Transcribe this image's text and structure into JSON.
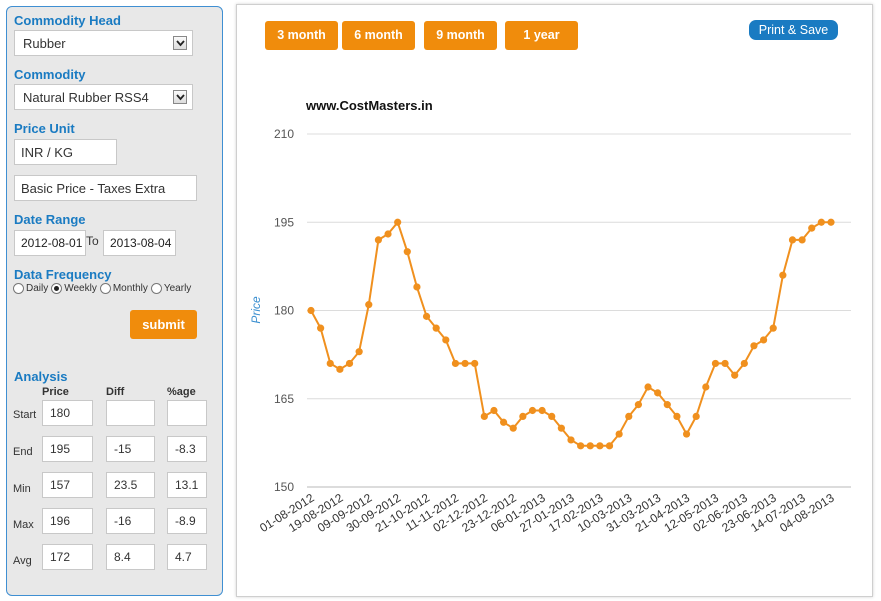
{
  "filters": {
    "commodity_head_label": "Commodity Head",
    "commodity_head_value": "Rubber",
    "commodity_label": "Commodity",
    "commodity_value": "Natural Rubber RSS4",
    "price_unit_label": "Price Unit",
    "price_unit_value": "INR / KG",
    "price_basis_value": "Basic Price - Taxes Extra",
    "date_range_label": "Date Range",
    "date_from": "2012-08-01",
    "to_label": "To",
    "date_to": "2013-08-04",
    "data_frequency_label": "Data Frequency",
    "frequency_options": [
      "Daily",
      "Weekly",
      "Monthly",
      "Yearly"
    ],
    "frequency_selected": "Weekly",
    "submit_label": "submit"
  },
  "analysis": {
    "title": "Analysis",
    "columns": [
      "Price",
      "Diff",
      "%age"
    ],
    "rows": [
      {
        "label": "Start",
        "price": "180",
        "diff": "",
        "pct": ""
      },
      {
        "label": "End",
        "price": "195",
        "diff": "-15",
        "pct": "-8.3"
      },
      {
        "label": "Min",
        "price": "157",
        "diff": "23.5",
        "pct": "13.1"
      },
      {
        "label": "Max",
        "price": "196",
        "diff": "-16",
        "pct": "-8.9"
      },
      {
        "label": "Avg",
        "price": "172",
        "diff": "8.4",
        "pct": "4.7"
      }
    ]
  },
  "toolbar": {
    "range_buttons": [
      "3 month",
      "6 month",
      "9 month",
      "1 year"
    ],
    "print_label": "Print & Save"
  },
  "colors": {
    "accent_orange": "#f08c0c",
    "accent_blue": "#1a7bc2",
    "line": "#f0901e"
  },
  "chart_data": {
    "type": "line",
    "title": "www.CostMasters.in",
    "xlabel": "",
    "ylabel": "Price",
    "ylim": [
      150,
      210
    ],
    "yticks": [
      150,
      165,
      180,
      195,
      210
    ],
    "grid": true,
    "x_tick_labels": [
      "01-08-2012",
      "19-08-2012",
      "09-09-2012",
      "30-09-2012",
      "21-10-2012",
      "11-11-2012",
      "02-12-2012",
      "23-12-2012",
      "06-01-2013",
      "27-01-2013",
      "17-02-2013",
      "10-03-2013",
      "31-03-2013",
      "21-04-2013",
      "12-05-2013",
      "02-06-2013",
      "23-06-2013",
      "14-07-2013",
      "04-08-2013"
    ],
    "series": [
      {
        "values": [
          180,
          177,
          171,
          170,
          171,
          173,
          181,
          192,
          193,
          195,
          190,
          184,
          179,
          177,
          175,
          171,
          171,
          171,
          162,
          163,
          161,
          160,
          162,
          163,
          163,
          162,
          160,
          158,
          157,
          157,
          157,
          157,
          159,
          162,
          164,
          167,
          166,
          164,
          162,
          159,
          162,
          167,
          171,
          171,
          169,
          171,
          174,
          175,
          177,
          186,
          192,
          192,
          194,
          195,
          195
        ]
      }
    ]
  }
}
